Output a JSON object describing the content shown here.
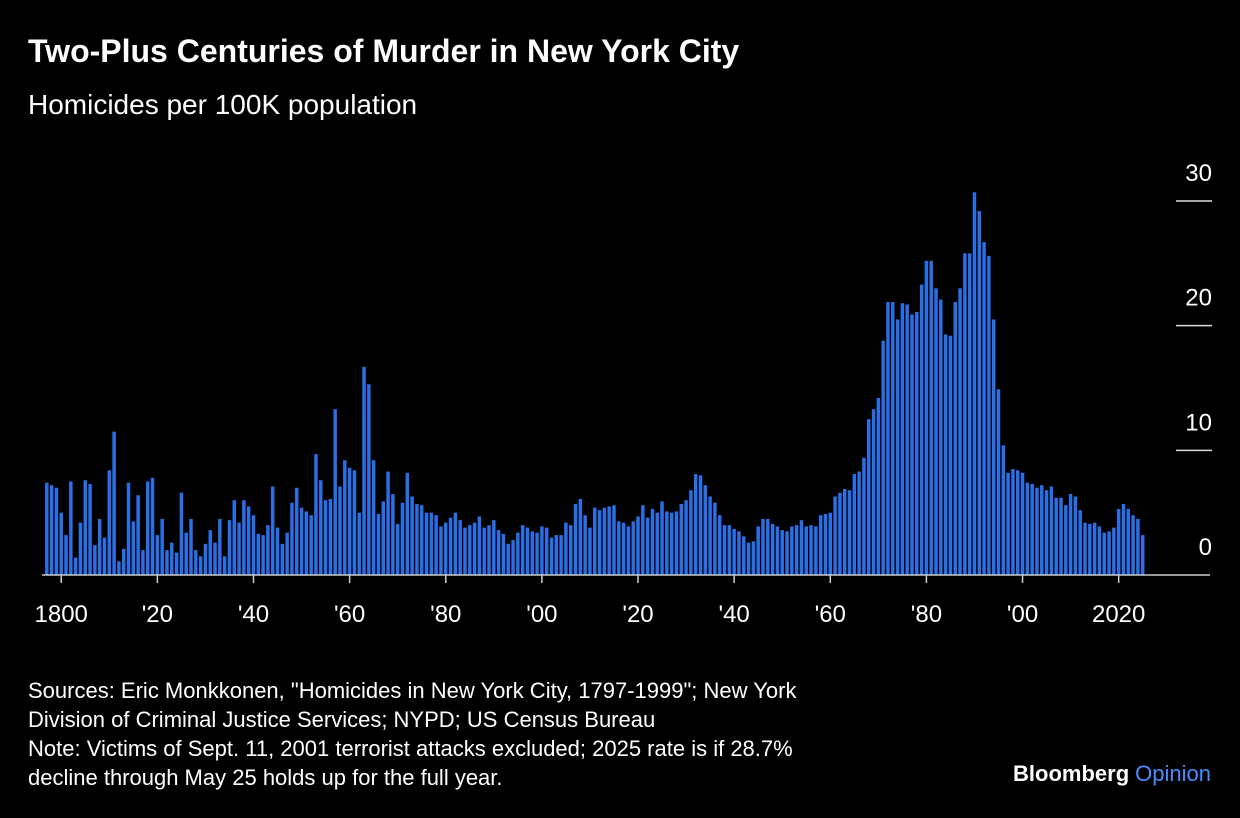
{
  "chart_data": {
    "type": "bar",
    "title": "Two-Plus Centuries of Murder in New York City",
    "subtitle": "Homicides per 100K population",
    "x": [
      1797,
      1798,
      1799,
      1800,
      1801,
      1802,
      1803,
      1804,
      1805,
      1806,
      1807,
      1808,
      1809,
      1810,
      1811,
      1812,
      1813,
      1814,
      1815,
      1816,
      1817,
      1818,
      1819,
      1820,
      1821,
      1822,
      1823,
      1824,
      1825,
      1826,
      1827,
      1828,
      1829,
      1830,
      1831,
      1832,
      1833,
      1834,
      1835,
      1836,
      1837,
      1838,
      1839,
      1840,
      1841,
      1842,
      1843,
      1844,
      1845,
      1846,
      1847,
      1848,
      1849,
      1850,
      1851,
      1852,
      1853,
      1854,
      1855,
      1856,
      1857,
      1858,
      1859,
      1860,
      1861,
      1862,
      1863,
      1864,
      1865,
      1866,
      1867,
      1868,
      1869,
      1870,
      1871,
      1872,
      1873,
      1874,
      1875,
      1876,
      1877,
      1878,
      1879,
      1880,
      1881,
      1882,
      1883,
      1884,
      1885,
      1886,
      1887,
      1888,
      1889,
      1890,
      1891,
      1892,
      1893,
      1894,
      1895,
      1896,
      1897,
      1898,
      1899,
      1900,
      1901,
      1902,
      1903,
      1904,
      1905,
      1906,
      1907,
      1908,
      1909,
      1910,
      1911,
      1912,
      1913,
      1914,
      1915,
      1916,
      1917,
      1918,
      1919,
      1920,
      1921,
      1922,
      1923,
      1924,
      1925,
      1926,
      1927,
      1928,
      1929,
      1930,
      1931,
      1932,
      1933,
      1934,
      1935,
      1936,
      1937,
      1938,
      1939,
      1940,
      1941,
      1942,
      1943,
      1944,
      1945,
      1946,
      1947,
      1948,
      1949,
      1950,
      1951,
      1952,
      1953,
      1954,
      1955,
      1956,
      1957,
      1958,
      1959,
      1960,
      1961,
      1962,
      1963,
      1964,
      1965,
      1966,
      1967,
      1968,
      1969,
      1970,
      1971,
      1972,
      1973,
      1974,
      1975,
      1976,
      1977,
      1978,
      1979,
      1980,
      1981,
      1982,
      1983,
      1984,
      1985,
      1986,
      1987,
      1988,
      1989,
      1990,
      1991,
      1992,
      1993,
      1994,
      1995,
      1996,
      1997,
      1998,
      1999,
      2000,
      2001,
      2002,
      2003,
      2004,
      2005,
      2006,
      2007,
      2008,
      2009,
      2010,
      2011,
      2012,
      2013,
      2014,
      2015,
      2016,
      2017,
      2018,
      2019,
      2020,
      2021,
      2022,
      2023,
      2024,
      2025
    ],
    "values": [
      7.4,
      7.2,
      7.0,
      5.0,
      3.2,
      7.5,
      1.4,
      4.2,
      7.6,
      7.3,
      2.4,
      4.5,
      3.0,
      8.4,
      11.5,
      1.1,
      2.1,
      7.4,
      4.3,
      6.4,
      2.0,
      7.5,
      7.8,
      3.2,
      4.5,
      2.0,
      2.6,
      1.8,
      6.6,
      3.4,
      4.5,
      2.0,
      1.5,
      2.5,
      3.6,
      2.6,
      4.5,
      1.5,
      4.4,
      6.0,
      4.2,
      6.0,
      5.5,
      4.8,
      3.3,
      3.2,
      4.0,
      7.1,
      3.8,
      2.5,
      3.4,
      5.8,
      7.0,
      5.4,
      5.1,
      4.8,
      9.7,
      7.6,
      6.0,
      6.1,
      13.3,
      7.1,
      9.2,
      8.6,
      8.4,
      5.0,
      16.7,
      15.3,
      9.2,
      4.9,
      5.9,
      8.3,
      6.5,
      4.1,
      5.8,
      8.2,
      6.3,
      5.7,
      5.6,
      5.0,
      5.0,
      4.8,
      3.9,
      4.2,
      4.6,
      5.0,
      4.4,
      3.8,
      4.0,
      4.2,
      4.7,
      3.8,
      4.0,
      4.4,
      3.6,
      3.3,
      2.5,
      2.8,
      3.4,
      4.0,
      3.8,
      3.5,
      3.4,
      3.9,
      3.8,
      3.0,
      3.2,
      3.2,
      4.2,
      4.0,
      5.7,
      6.1,
      4.8,
      3.8,
      5.4,
      5.2,
      5.4,
      5.5,
      5.6,
      4.3,
      4.2,
      3.9,
      4.3,
      4.7,
      5.6,
      4.6,
      5.3,
      5.0,
      5.9,
      5.1,
      5.0,
      5.1,
      5.7,
      6.0,
      6.8,
      8.1,
      8.0,
      7.2,
      6.3,
      5.8,
      4.8,
      4.0,
      4.0,
      3.7,
      3.5,
      3.1,
      2.6,
      2.7,
      3.9,
      4.5,
      4.5,
      4.1,
      3.9,
      3.6,
      3.5,
      3.9,
      4.0,
      4.4,
      3.9,
      4.0,
      3.9,
      4.8,
      4.9,
      5.0,
      6.3,
      6.6,
      6.9,
      6.8,
      8.1,
      8.3,
      9.4,
      12.5,
      13.3,
      14.2,
      18.8,
      21.9,
      21.9,
      20.5,
      21.8,
      21.7,
      20.9,
      21.1,
      23.3,
      25.2,
      25.2,
      23.0,
      22.1,
      19.3,
      19.2,
      21.9,
      23.0,
      25.8,
      25.8,
      30.7,
      29.2,
      26.7,
      25.6,
      20.5,
      14.9,
      10.4,
      8.2,
      8.5,
      8.4,
      8.2,
      7.4,
      7.3,
      7.0,
      7.2,
      6.8,
      7.1,
      6.2,
      6.2,
      5.6,
      6.5,
      6.3,
      5.2,
      4.2,
      4.1,
      4.2,
      3.9,
      3.4,
      3.5,
      3.8,
      5.3,
      5.7,
      5.3,
      4.8,
      4.5,
      3.2
    ],
    "color": "#2a6fe6",
    "xlim": [
      1796,
      2039
    ],
    "xticks": [
      1800,
      {
        "value": 1820,
        "label": "'20"
      },
      {
        "value": 1840,
        "label": "'40"
      },
      {
        "value": 1860,
        "label": "'60"
      },
      {
        "value": 1880,
        "label": "'80"
      },
      {
        "value": 1900,
        "label": "'00"
      },
      {
        "value": 1920,
        "label": "'20"
      },
      {
        "value": 1940,
        "label": "'40"
      },
      {
        "value": 1960,
        "label": "'60"
      },
      {
        "value": 1980,
        "label": "'80"
      },
      {
        "value": 2000,
        "label": "'00"
      },
      2020
    ],
    "ylim": [
      0,
      30
    ],
    "yticks": [
      0,
      10,
      20,
      30
    ],
    "sources": [
      "Sources: Eric Monkkonen, \"Homicides in New York City, 1797-1999\"; New York",
      "Division of Criminal Justice Services; NYPD; US Census Bureau",
      "Note: Victims of Sept. 11, 2001 terrorist attacks excluded; 2025 rate is if 28.7%",
      "decline through May 25 holds up for the full year."
    ],
    "logo": [
      "Bloomberg",
      "Opinion"
    ]
  }
}
